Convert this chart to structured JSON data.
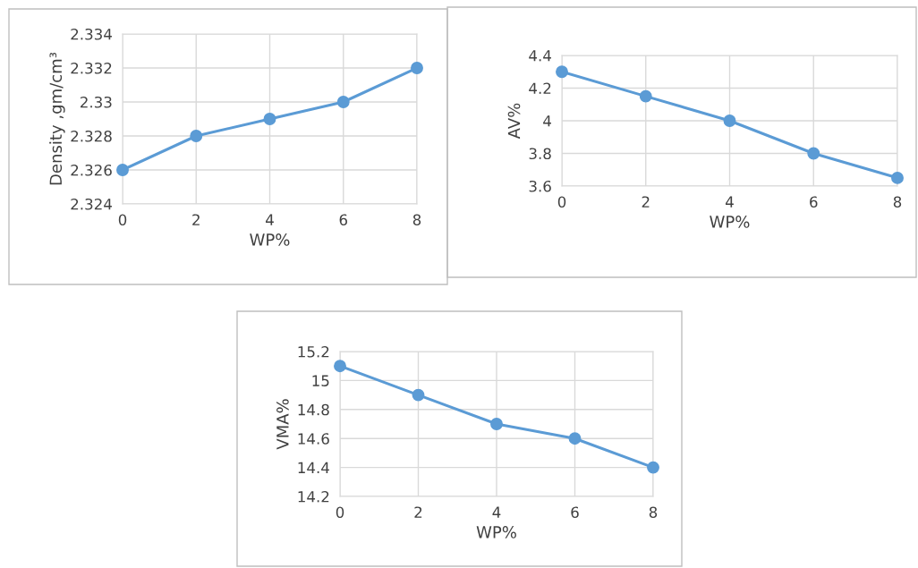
{
  "chart_data": [
    {
      "type": "line",
      "xlabel": "WP%",
      "ylabel": "Density ,gm/cm³",
      "x": [
        0,
        2,
        4,
        6,
        8
      ],
      "xlim": [
        0,
        8
      ],
      "xticks": [
        0,
        2,
        4,
        6,
        8
      ],
      "ylim": [
        2.324,
        2.334
      ],
      "yticks": [
        2.324,
        2.326,
        2.328,
        2.33,
        2.332,
        2.334
      ],
      "grid": true,
      "marker": "circle",
      "line_style": "solid",
      "series": [
        {
          "color": "#5b9bd5",
          "values": [
            2.326,
            2.328,
            2.329,
            2.33,
            2.332
          ]
        }
      ]
    },
    {
      "type": "line",
      "xlabel": "WP%",
      "ylabel": "AV%",
      "x": [
        0,
        2,
        4,
        6,
        8
      ],
      "xlim": [
        0,
        8
      ],
      "xticks": [
        0,
        2,
        4,
        6,
        8
      ],
      "ylim": [
        3.6,
        4.4
      ],
      "yticks": [
        3.6,
        3.8,
        4,
        4.2,
        4.4
      ],
      "grid": true,
      "marker": "circle",
      "line_style": "solid",
      "series": [
        {
          "color": "#5b9bd5",
          "values": [
            4.3,
            4.15,
            4.0,
            3.8,
            3.65
          ]
        }
      ]
    },
    {
      "type": "line",
      "xlabel": "WP%",
      "ylabel": "VMA%",
      "x": [
        0,
        2,
        4,
        6,
        8
      ],
      "xlim": [
        0,
        8
      ],
      "xticks": [
        0,
        2,
        4,
        6,
        8
      ],
      "ylim": [
        14.2,
        15.2
      ],
      "yticks": [
        14.2,
        14.4,
        14.6,
        14.8,
        15,
        15.2
      ],
      "grid": true,
      "marker": "circle",
      "line_style": "solid",
      "series": [
        {
          "color": "#5b9bd5",
          "values": [
            15.1,
            14.9,
            14.7,
            14.6,
            14.4
          ]
        }
      ]
    }
  ]
}
